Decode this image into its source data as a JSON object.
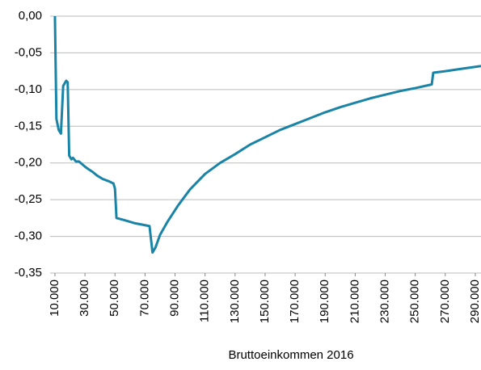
{
  "chart_data": {
    "type": "line",
    "x_label": "Bruttoeinkommen 2016",
    "x": [
      10000,
      11000,
      12500,
      14000,
      15500,
      17500,
      18500,
      19500,
      21000,
      22000,
      24000,
      26000,
      30000,
      32000,
      35000,
      38000,
      42000,
      46000,
      49000,
      50000,
      51000,
      53000,
      58000,
      63000,
      68000,
      73000,
      75000,
      77000,
      80000,
      85000,
      92000,
      100000,
      110000,
      120000,
      130000,
      140000,
      150000,
      160000,
      170000,
      180000,
      190000,
      200000,
      210000,
      220000,
      230000,
      240000,
      250000,
      261000,
      262000,
      270000,
      280000,
      293800
    ],
    "series": [
      {
        "color": "#1a84a6",
        "values": [
          0,
          -0.14,
          -0.155,
          -0.16,
          -0.095,
          -0.088,
          -0.09,
          -0.19,
          -0.195,
          -0.193,
          -0.198,
          -0.198,
          -0.205,
          -0.208,
          -0.212,
          -0.217,
          -0.222,
          -0.225,
          -0.228,
          -0.235,
          -0.275,
          -0.276,
          -0.279,
          -0.282,
          -0.284,
          -0.286,
          -0.322,
          -0.315,
          -0.298,
          -0.28,
          -0.258,
          -0.236,
          -0.215,
          -0.2,
          -0.188,
          -0.175,
          -0.165,
          -0.155,
          -0.147,
          -0.139,
          -0.131,
          -0.124,
          -0.118,
          -0.112,
          -0.107,
          -0.102,
          -0.098,
          -0.093,
          -0.077,
          -0.075,
          -0.072,
          -0.068
        ]
      }
    ],
    "xlim": [
      6800,
      293800
    ],
    "ylim": [
      -0.35,
      0
    ],
    "xticks": [
      {
        "value": 10000,
        "label": "10.000"
      },
      {
        "value": 30000,
        "label": "30.000"
      },
      {
        "value": 50000,
        "label": "50.000"
      },
      {
        "value": 70000,
        "label": "70.000"
      },
      {
        "value": 90000,
        "label": "90.000"
      },
      {
        "value": 110000,
        "label": "110.000"
      },
      {
        "value": 130000,
        "label": "130.000"
      },
      {
        "value": 150000,
        "label": "150.000"
      },
      {
        "value": 170000,
        "label": "170.000"
      },
      {
        "value": 190000,
        "label": "190.000"
      },
      {
        "value": 210000,
        "label": "210.000"
      },
      {
        "value": 230000,
        "label": "230.000"
      },
      {
        "value": 250000,
        "label": "250.000"
      },
      {
        "value": 270000,
        "label": "270.000"
      },
      {
        "value": 290000,
        "label": "290.000"
      }
    ],
    "yticks": [
      {
        "value": 0,
        "label": "0,00"
      },
      {
        "value": -0.05,
        "label": "-0,05"
      },
      {
        "value": -0.1,
        "label": "-0,10"
      },
      {
        "value": -0.15,
        "label": "-0,15"
      },
      {
        "value": -0.2,
        "label": "-0,20"
      },
      {
        "value": -0.25,
        "label": "-0,25"
      },
      {
        "value": -0.3,
        "label": "-0,30"
      },
      {
        "value": -0.35,
        "label": "-0,35"
      }
    ],
    "grid": true
  }
}
